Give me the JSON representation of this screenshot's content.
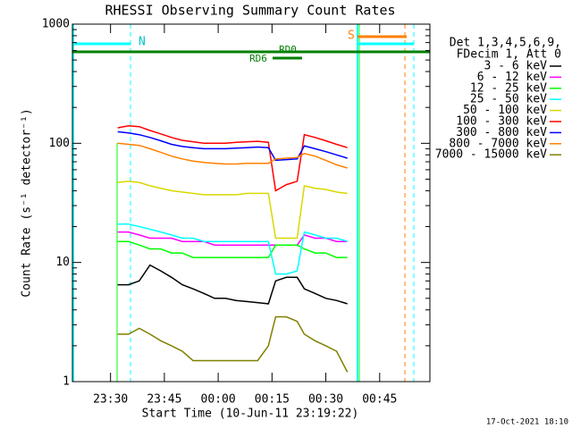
{
  "chart_data": {
    "type": "line",
    "title": "RHESSI Observing Summary Count Rates",
    "xlabel": "Start Time (10-Jun-11 23:19:22)",
    "ylabel": "Count Rate (s⁻¹ detector⁻¹)",
    "footer": "17-Oct-2021 18:10",
    "legend_header": [
      "Det 1,3,4,5,6,9,",
      "FDecim 1, Att 0"
    ],
    "annotations": [
      "N",
      "S",
      "RD0",
      "RD6"
    ],
    "log_y": true,
    "ylim": [
      1,
      1000
    ],
    "yticks": [
      1,
      10,
      100,
      1000
    ],
    "yminorticks": [
      2,
      3,
      4,
      5,
      6,
      7,
      8,
      9,
      20,
      30,
      40,
      50,
      60,
      70,
      80,
      90,
      200,
      300,
      400,
      500,
      600,
      700,
      800,
      900
    ],
    "xlim": [
      19.37,
      119
    ],
    "xticks": [
      {
        "value": 30,
        "label": "23:30"
      },
      {
        "value": 45,
        "label": "23:45"
      },
      {
        "value": 60,
        "label": "00:00"
      },
      {
        "value": 75,
        "label": "00:15"
      },
      {
        "value": 90,
        "label": "00:30"
      },
      {
        "value": 105,
        "label": "00:45"
      }
    ],
    "x": [
      32,
      35,
      38,
      41,
      44,
      47,
      50,
      53,
      56,
      59,
      62,
      65,
      68,
      71,
      74,
      76,
      79,
      82,
      84,
      87,
      90,
      93,
      96
    ],
    "series": [
      {
        "name": "3 - 6 keV",
        "color": "#000000",
        "values": [
          6.5,
          6.5,
          7,
          9.5,
          8.5,
          7.5,
          6.5,
          6,
          5.5,
          5,
          5,
          4.8,
          4.7,
          4.6,
          4.5,
          7,
          7.5,
          7.5,
          6,
          5.5,
          5,
          4.8,
          4.5
        ]
      },
      {
        "name": "6 - 12 keV",
        "color": "#ff00ff",
        "values": [
          18,
          18,
          17,
          16,
          16,
          16,
          15,
          15,
          15,
          14,
          14,
          14,
          14,
          14,
          14,
          14,
          14,
          14,
          17,
          16,
          16,
          15,
          15
        ]
      },
      {
        "name": "12 - 25 keV",
        "color": "#00ff00",
        "values": [
          15,
          15,
          14,
          13,
          13,
          12,
          12,
          11,
          11,
          11,
          11,
          11,
          11,
          11,
          11,
          14,
          14,
          14,
          13,
          12,
          12,
          11,
          11
        ]
      },
      {
        "name": "25 - 50 keV",
        "color": "#00ffff",
        "values": [
          21,
          21,
          20,
          19,
          18,
          17,
          16,
          16,
          15,
          15,
          15,
          15,
          15,
          15,
          15,
          8,
          8,
          8.5,
          18,
          17,
          16,
          16,
          15
        ]
      },
      {
        "name": "50 - 100 keV",
        "color": "#d8d800",
        "values": [
          47,
          48,
          47,
          44,
          42,
          40,
          39,
          38,
          37,
          37,
          37,
          37,
          38,
          38,
          38,
          16,
          16,
          16,
          44,
          42,
          41,
          39,
          38
        ]
      },
      {
        "name": "100 - 300 keV",
        "color": "#ff0000",
        "values": [
          135,
          140,
          138,
          128,
          120,
          112,
          106,
          103,
          100,
          100,
          100,
          102,
          103,
          104,
          102,
          40,
          45,
          48,
          118,
          112,
          105,
          98,
          92
        ]
      },
      {
        "name": "300 - 800 keV",
        "color": "#0000ff",
        "values": [
          125,
          122,
          118,
          112,
          105,
          98,
          94,
          92,
          90,
          90,
          90,
          91,
          92,
          93,
          92,
          72,
          73,
          74,
          95,
          90,
          85,
          80,
          75
        ]
      },
      {
        "name": "800 - 7000 keV",
        "color": "#ff8000",
        "values": [
          100,
          98,
          96,
          90,
          84,
          78,
          74,
          71,
          69,
          68,
          67,
          67,
          68,
          68,
          68,
          74,
          75,
          76,
          82,
          78,
          72,
          66,
          62
        ]
      },
      {
        "name": "7000 - 15000 keV",
        "color": "#808000",
        "values": [
          2.5,
          2.5,
          2.8,
          2.5,
          2.2,
          2,
          1.8,
          1.5,
          1.5,
          1.5,
          1.5,
          1.5,
          1.5,
          1.5,
          2,
          3.5,
          3.5,
          3.2,
          2.5,
          2.2,
          2,
          1.8,
          1.2
        ]
      }
    ]
  }
}
